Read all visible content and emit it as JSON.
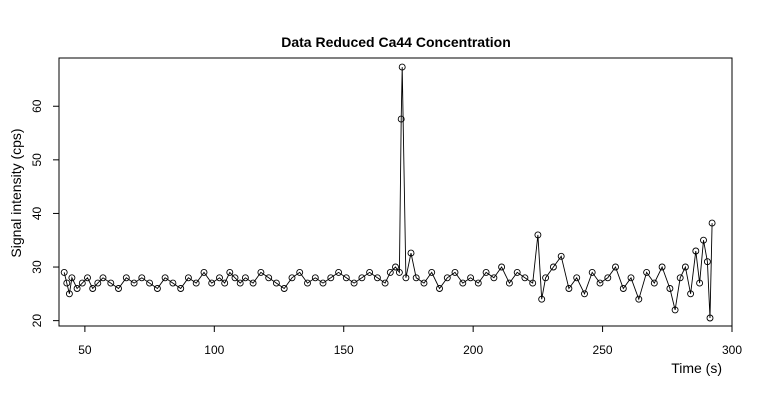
{
  "chart_data": {
    "type": "scatter",
    "title": "Data Reduced Ca44 Concentration",
    "xlabel": "Time (s)",
    "ylabel": "Signal intensity (cps)",
    "xlim": [
      40,
      300
    ],
    "ylim": [
      19,
      69
    ],
    "xticks": [
      50,
      100,
      150,
      200,
      250,
      300
    ],
    "yticks": [
      20,
      30,
      40,
      50,
      60
    ],
    "xtick_labels": [
      "50",
      "100",
      "150",
      "200",
      "250",
      "300"
    ],
    "ytick_labels": [
      "20",
      "30",
      "40",
      "50",
      "60"
    ],
    "grid": false,
    "marker": "open-circle",
    "connected_line": true,
    "series": [
      {
        "x": [
          42,
          43,
          44,
          45,
          47,
          49,
          51,
          53,
          55,
          57,
          60,
          63,
          66,
          69,
          72,
          75,
          78,
          81,
          84,
          87,
          90,
          93,
          96,
          99,
          102,
          104,
          106,
          108,
          110,
          112,
          115,
          118,
          121,
          124,
          127,
          130,
          133,
          136,
          139,
          142,
          145,
          148,
          151,
          154,
          157,
          160,
          163,
          166,
          168,
          170,
          171.5,
          172.2,
          172.6,
          174,
          176,
          178,
          181,
          184,
          187,
          190,
          193,
          196,
          199,
          202,
          205,
          208,
          211,
          214,
          217,
          220,
          223,
          225,
          226.5,
          228,
          231,
          234,
          237,
          240,
          243,
          246,
          249,
          252,
          255,
          258,
          261,
          264,
          267,
          270,
          273,
          276,
          278,
          280,
          282,
          284,
          286,
          287.5,
          289,
          290.5,
          291.5,
          292.3
        ],
        "y": [
          29,
          27,
          25,
          28,
          26,
          27,
          28,
          26,
          27,
          28,
          27,
          26,
          28,
          27,
          28,
          27,
          26,
          28,
          27,
          26,
          28,
          27,
          29,
          27,
          28,
          27,
          29,
          28,
          27,
          28,
          27,
          29,
          28,
          27,
          26,
          28,
          29,
          27,
          28,
          27,
          28,
          29,
          28,
          27,
          28,
          29,
          28,
          27,
          29,
          30,
          29,
          57.6,
          67.3,
          28,
          32.6,
          28,
          27,
          29,
          26,
          28,
          29,
          27,
          28,
          27,
          29,
          28,
          30,
          27,
          29,
          28,
          27,
          36,
          24,
          28,
          30,
          32,
          26,
          28,
          25,
          29,
          27,
          28,
          30,
          26,
          28,
          24,
          29,
          27,
          30,
          26,
          22,
          28,
          30,
          25,
          33,
          27,
          35,
          31,
          20.5,
          38.2
        ]
      }
    ]
  }
}
